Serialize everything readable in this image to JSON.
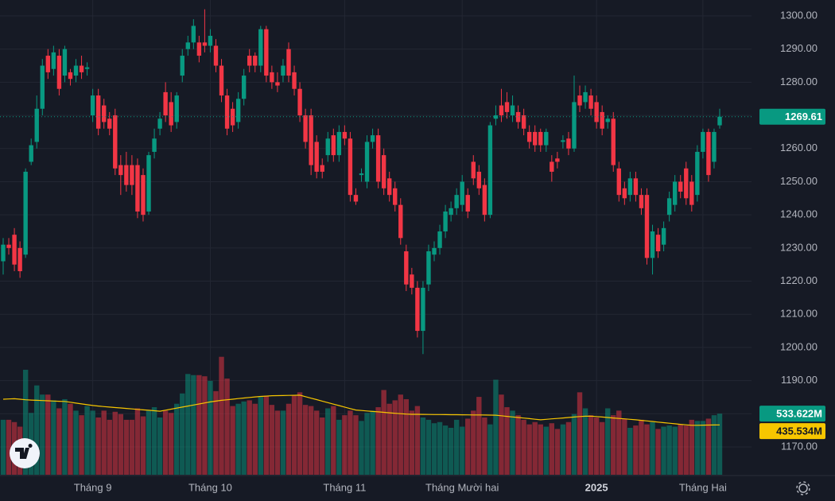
{
  "chart_data": {
    "type": "candlestick",
    "categories": [
      null,
      null,
      null,
      null,
      null,
      null,
      null,
      null,
      null,
      null,
      null,
      null,
      null,
      null,
      null,
      null,
      "Tháng 9",
      null,
      null,
      null,
      null,
      null,
      null,
      null,
      null,
      null,
      null,
      null,
      null,
      null,
      null,
      null,
      null,
      null,
      null,
      null,
      null,
      "Tháng 10",
      null,
      null,
      null,
      null,
      null,
      null,
      null,
      null,
      null,
      null,
      null,
      null,
      null,
      null,
      null,
      null,
      null,
      null,
      null,
      null,
      null,
      null,
      null,
      "Tháng 11",
      null,
      null,
      null,
      null,
      null,
      null,
      null,
      null,
      null,
      null,
      null,
      null,
      null,
      null,
      null,
      null,
      null,
      null,
      null,
      null,
      "Tháng Mười hai",
      null,
      null,
      null,
      null,
      null,
      null,
      null,
      null,
      null,
      null,
      null,
      null,
      null,
      null,
      null,
      null,
      null,
      null,
      null,
      null,
      null,
      null,
      null,
      "2025",
      null,
      null,
      null,
      null,
      null,
      null,
      null,
      null,
      null,
      null,
      null,
      null,
      null,
      null,
      null,
      null,
      null,
      null,
      "Tháng Hai",
      null,
      null,
      null
    ],
    "open": [
      1226,
      1231,
      1234,
      1230,
      1228,
      1256,
      1262,
      1272,
      1288,
      1284,
      1288,
      1282,
      1283,
      1282,
      1285,
      1284,
      1270,
      1276,
      1273,
      1269,
      1270,
      1255,
      1255,
      1255,
      1255,
      1252,
      1241,
      1259,
      1266,
      1277,
      1274,
      1268,
      1282,
      1290,
      1292,
      1292,
      1292,
      1291,
      1291,
      1285,
      1276,
      1272,
      1268,
      1275,
      1288,
      1288,
      1285,
      1296,
      1283,
      1280,
      1282,
      1290,
      1283,
      1278,
      1270,
      1270,
      1262,
      1255,
      1258,
      1264,
      1258,
      1265,
      1263,
      1246,
      1252,
      1250,
      1262,
      1264,
      1258,
      1251,
      1248,
      1243,
      1229,
      1222,
      1218,
      1205,
      1219,
      1228,
      1230,
      1235,
      1240,
      1242,
      1243,
      1246,
      1256,
      1253,
      1249,
      1240,
      1269,
      1273,
      1274,
      1270,
      1271,
      1270,
      1265,
      1265,
      1265,
      1261,
      1256,
      1257,
      1262,
      1263,
      1260,
      1276,
      1274,
      1276,
      1274,
      1271,
      1268,
      1269,
      1254,
      1248,
      1246,
      1251,
      1246,
      1246,
      1227,
      1234,
      1231,
      1240,
      1243,
      1250,
      1254,
      1250,
      1246,
      1259,
      1265,
      1256,
      1267
    ],
    "high": [
      1233,
      1233,
      1236,
      1232,
      1254,
      1263,
      1276,
      1287,
      1290,
      1291,
      1290,
      1291,
      1284,
      1287,
      1288,
      1286,
      1278,
      1278,
      1275,
      1271,
      1272,
      1258,
      1259,
      1258,
      1257,
      1254,
      1259,
      1266,
      1271,
      1280,
      1277,
      1277,
      1290,
      1294,
      1299,
      1294,
      1302,
      1296,
      1293,
      1287,
      1278,
      1274,
      1277,
      1284,
      1290,
      1289,
      1297,
      1297,
      1285,
      1283,
      1287,
      1292,
      1285,
      1280,
      1272,
      1272,
      1264,
      1257,
      1265,
      1266,
      1267,
      1267,
      1265,
      1248,
      1254,
      1264,
      1266,
      1266,
      1260,
      1253,
      1250,
      1245,
      1231,
      1224,
      1220,
      1220,
      1231,
      1232,
      1237,
      1243,
      1244,
      1248,
      1252,
      1248,
      1258,
      1255,
      1251,
      1268,
      1273,
      1278,
      1277,
      1276,
      1273,
      1272,
      1267,
      1267,
      1266,
      1266,
      1258,
      1259,
      1264,
      1265,
      1282,
      1279,
      1279,
      1278,
      1276,
      1273,
      1270,
      1271,
      1256,
      1250,
      1253,
      1253,
      1248,
      1248,
      1237,
      1236,
      1238,
      1247,
      1252,
      1252,
      1256,
      1252,
      1261,
      1266,
      1266,
      1266,
      1272
    ],
    "low": [
      1222,
      1228,
      1223,
      1221,
      1227,
      1255,
      1260,
      1270,
      1281,
      1282,
      1276,
      1280,
      1279,
      1280,
      1281,
      1282,
      1268,
      1264,
      1266,
      1264,
      1252,
      1246,
      1247,
      1246,
      1239,
      1238,
      1240,
      1257,
      1264,
      1268,
      1265,
      1266,
      1280,
      1288,
      1290,
      1286,
      1289,
      1289,
      1283,
      1274,
      1264,
      1265,
      1266,
      1273,
      1283,
      1283,
      1283,
      1280,
      1278,
      1277,
      1280,
      1280,
      1276,
      1268,
      1260,
      1252,
      1251,
      1251,
      1256,
      1256,
      1256,
      1261,
      1244,
      1243,
      1250,
      1248,
      1260,
      1248,
      1246,
      1244,
      1241,
      1231,
      1217,
      1216,
      1203,
      1198,
      1217,
      1226,
      1228,
      1233,
      1238,
      1240,
      1241,
      1239,
      1249,
      1246,
      1238,
      1239,
      1267,
      1268,
      1269,
      1268,
      1266,
      1264,
      1260,
      1259,
      1259,
      1259,
      1250,
      1254,
      1260,
      1258,
      1259,
      1271,
      1272,
      1270,
      1266,
      1264,
      1266,
      1253,
      1244,
      1243,
      1244,
      1244,
      1240,
      1225,
      1222,
      1227,
      1229,
      1238,
      1241,
      1245,
      1243,
      1241,
      1244,
      1257,
      1250,
      1254,
      1266
    ],
    "close": [
      1231,
      1230,
      1225,
      1223,
      1253,
      1261,
      1272,
      1285,
      1283,
      1289,
      1278,
      1290,
      1281,
      1285,
      1283,
      1284.5,
      1276,
      1266,
      1268,
      1266,
      1254,
      1252,
      1249,
      1249,
      1241,
      1240,
      1258,
      1263,
      1269,
      1270,
      1267,
      1276,
      1288,
      1292,
      1297,
      1288,
      1291,
      1294,
      1285,
      1276,
      1266,
      1267,
      1275,
      1282,
      1285,
      1285,
      1296,
      1282,
      1280,
      1279,
      1285,
      1282,
      1278,
      1270,
      1262,
      1255,
      1253,
      1253,
      1263,
      1258,
      1265,
      1263,
      1246,
      1244,
      1252.5,
      1262,
      1264,
      1250,
      1248,
      1246,
      1243,
      1233,
      1219,
      1218,
      1205,
      1218,
      1229,
      1230,
      1235,
      1241,
      1242,
      1246,
      1250,
      1241,
      1251,
      1248,
      1240,
      1267,
      1270,
      1270,
      1271,
      1273,
      1268,
      1266,
      1262,
      1261,
      1261,
      1265,
      1253,
      1256,
      1262.5,
      1260,
      1274,
      1273,
      1277,
      1272,
      1268,
      1266,
      1269,
      1255,
      1246,
      1245,
      1251,
      1246,
      1242,
      1227,
      1235,
      1229,
      1236,
      1245,
      1250,
      1247,
      1245,
      1243,
      1259,
      1265,
      1252,
      1265,
      1269.61
    ],
    "up_color": "#089981",
    "down_color": "#f23645",
    "ylim": [
      1161.6,
      1304.8
    ],
    "yticks": [
      {
        "value": 1170,
        "label": "1170.00"
      },
      {
        "value": 1180,
        "label": "1180.00"
      },
      {
        "value": 1190,
        "label": "1190.00"
      },
      {
        "value": 1200,
        "label": "1200.00"
      },
      {
        "value": 1210,
        "label": "1210.00"
      },
      {
        "value": 1220,
        "label": "1220.00"
      },
      {
        "value": 1230,
        "label": "1230.00"
      },
      {
        "value": 1240,
        "label": "1240.00"
      },
      {
        "value": 1250,
        "label": "1250.00"
      },
      {
        "value": 1260,
        "label": "1260.00"
      },
      {
        "value": 1270,
        "label": "1270.00"
      },
      {
        "value": 1280,
        "label": "1280.00"
      },
      {
        "value": 1290,
        "label": "1290.00"
      },
      {
        "value": 1300,
        "label": "1300.00"
      }
    ],
    "grid": true,
    "volume": {
      "label": "533.622M",
      "values": [
        480,
        480,
        460,
        420,
        917,
        540,
        780,
        700,
        700,
        650,
        580,
        660,
        620,
        560,
        520,
        600,
        560,
        500,
        560,
        480,
        550,
        530,
        480,
        480,
        580,
        510,
        560,
        590,
        500,
        560,
        540,
        620,
        710,
        880,
        870,
        870,
        860,
        820,
        730,
        1030,
        840,
        600,
        620,
        640,
        650,
        620,
        680,
        690,
        610,
        560,
        560,
        620,
        690,
        720,
        610,
        600,
        560,
        500,
        580,
        600,
        480,
        520,
        560,
        520,
        470,
        540,
        560,
        590,
        740,
        620,
        650,
        700,
        660,
        560,
        600,
        500,
        480,
        450,
        460,
        430,
        410,
        480,
        420,
        490,
        560,
        680,
        500,
        440,
        830,
        700,
        590,
        560,
        520,
        480,
        440,
        460,
        440,
        420,
        450,
        400,
        440,
        460,
        530,
        720,
        580,
        520,
        500,
        460,
        580,
        520,
        560,
        490,
        410,
        430,
        480,
        440,
        460,
        400,
        420,
        430,
        420,
        440,
        430,
        480,
        470,
        470,
        490,
        520,
        533.622
      ]
    },
    "volume_ma": {
      "label": "435.534M",
      "color": "#f7c600",
      "values": [
        660,
        662,
        664,
        660,
        655,
        652,
        650,
        648,
        646,
        644,
        642,
        640,
        633,
        626,
        619,
        612,
        605,
        600,
        595,
        591,
        587,
        583,
        579,
        575,
        571,
        567,
        563,
        559,
        555,
        564,
        573,
        582,
        591,
        600,
        609,
        618,
        627,
        636,
        643,
        650,
        655,
        660,
        665,
        670,
        675,
        680,
        684,
        687,
        690,
        691,
        692,
        693,
        694,
        695,
        682,
        669,
        656,
        643,
        630,
        617,
        604,
        591,
        578,
        565,
        561,
        557,
        553,
        549,
        545,
        541,
        537,
        533,
        530,
        528,
        527.5,
        527,
        526.5,
        526,
        525.5,
        525,
        524.5,
        524,
        523.5,
        523,
        522.5,
        522,
        521.5,
        521,
        520,
        515,
        510,
        505,
        500,
        495,
        490,
        485,
        480,
        484,
        488,
        492,
        496,
        500,
        504,
        508,
        511,
        512,
        508,
        504,
        500,
        496,
        492,
        488,
        484,
        480,
        475,
        470,
        465,
        460,
        455,
        450,
        445,
        440,
        436,
        432,
        432,
        433,
        434,
        435,
        435.534
      ]
    }
  }
}
